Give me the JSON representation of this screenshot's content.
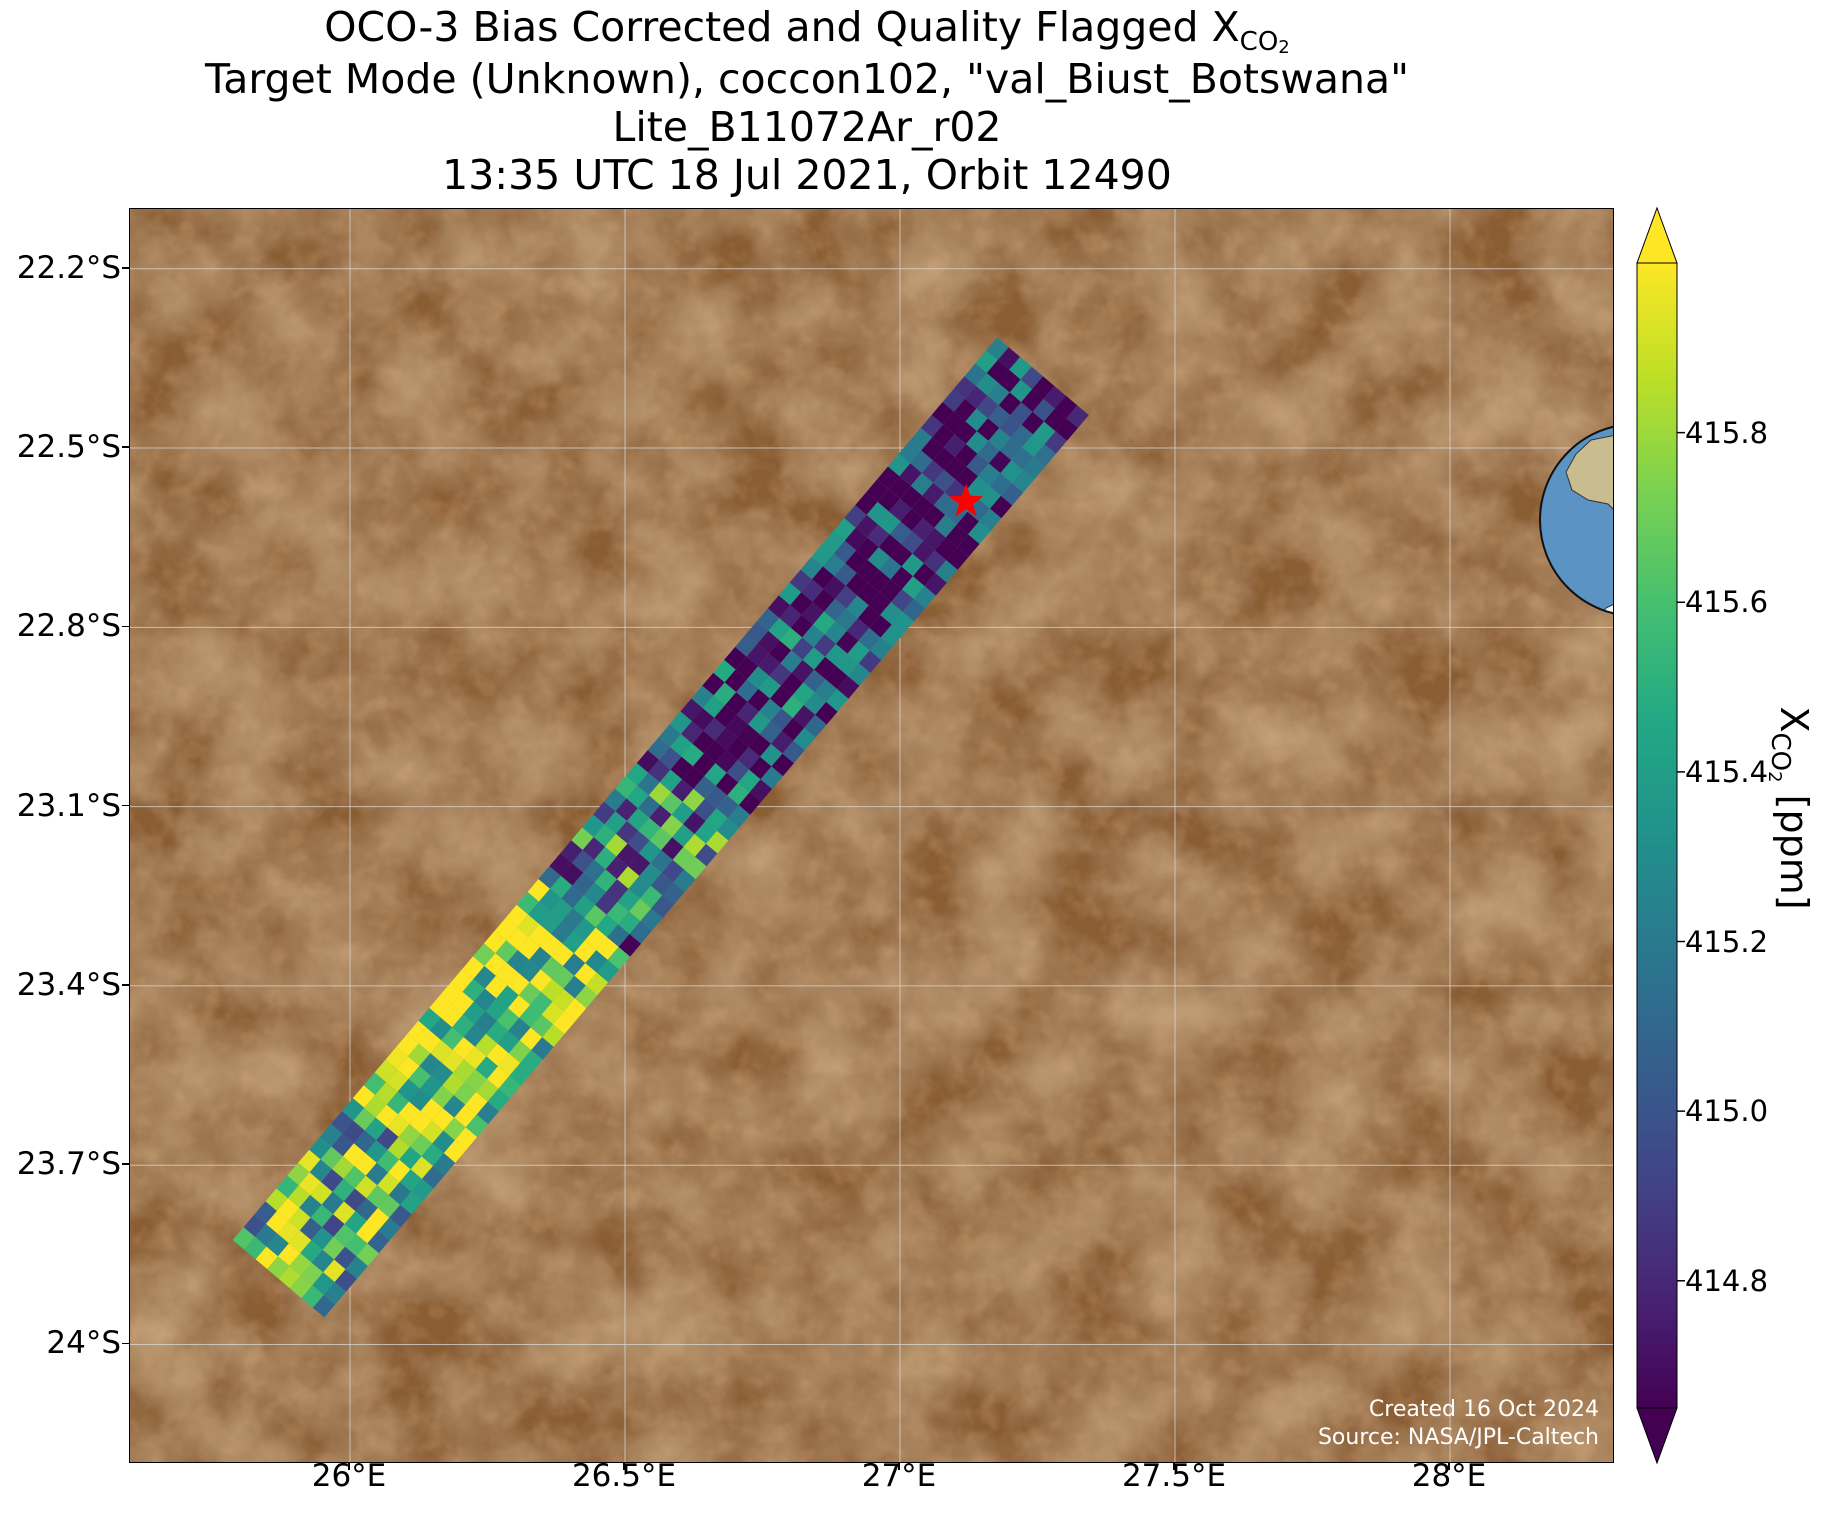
{
  "title": {
    "line1_prefix": "OCO-3 Bias Corrected and Quality Flagged X",
    "line1_sub": "CO",
    "line1_subsub": "2",
    "line2": "Target Mode (Unknown), coccon102, \"val_Biust_Botswana\"",
    "line3": "Lite_B11072Ar_r02",
    "line4": "13:35 UTC 18 Jul 2021, Orbit 12490"
  },
  "map": {
    "lon_range": [
      25.6,
      28.3
    ],
    "lat_range": [
      -24.2,
      -22.1
    ],
    "lat_ticks": [
      "22.2°S",
      "22.5°S",
      "22.8°S",
      "23.1°S",
      "23.4°S",
      "23.7°S",
      "24°S"
    ],
    "lat_tick_values": [
      -22.2,
      -22.5,
      -22.8,
      -23.1,
      -23.4,
      -23.7,
      -24.0
    ],
    "lon_ticks": [
      "26°E",
      "26.5°E",
      "27°E",
      "27.5°E",
      "28°E"
    ],
    "lon_tick_values": [
      26.0,
      26.5,
      27.0,
      27.5,
      28.0
    ],
    "target_star": {
      "lon": 27.12,
      "lat": -22.59,
      "color": "#ff0000"
    },
    "swath": {
      "start_lon": 25.87,
      "start_lat": -23.89,
      "end_lon": 27.26,
      "end_lat": -22.38
    },
    "background_color": "#8a5d33",
    "grid_color": "#d9d9d9"
  },
  "credits": {
    "line1": "Created 16 Oct 2024",
    "line2": "Source: NASA/JPL-Caltech"
  },
  "colorbar": {
    "label_prefix": "X",
    "label_sub": "CO",
    "label_subsub": "2",
    "label_suffix": " [ppm]",
    "vmin": 414.65,
    "vmax": 416.0,
    "tick_values": [
      414.8,
      415.0,
      415.2,
      415.4,
      415.6,
      415.8
    ],
    "tick_labels": [
      "414.8",
      "415.0",
      "415.2",
      "415.4",
      "415.6",
      "415.8"
    ],
    "colormap": "viridis",
    "under_color": "#440154",
    "over_color": "#fde725"
  },
  "inset": {
    "type": "globe",
    "ocean_color": "#5b93c4",
    "land_color": "#c9bd8f",
    "marker_color": "#ff0000"
  }
}
